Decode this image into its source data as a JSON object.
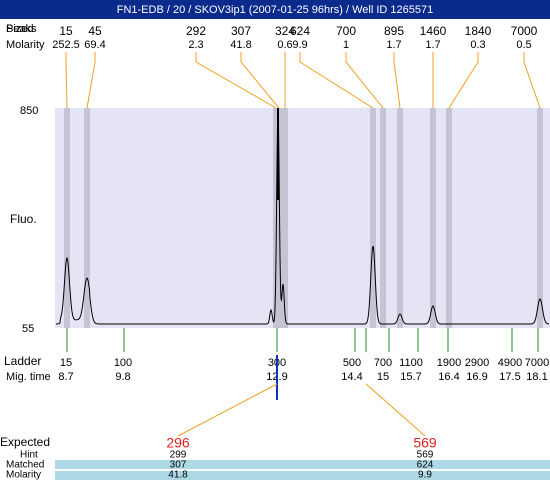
{
  "title": "FN1-EDB / 20 / SKOV3ip1 (2007-01-25 96hrs) / Well ID 1265571",
  "peak_table": {
    "peaks_label": "Peaks",
    "sized_label": "Sized",
    "molarity_label": "Molarity",
    "sizes": [
      15,
      45,
      292,
      307,
      324,
      624,
      700,
      895,
      1460,
      1840,
      7000
    ],
    "molarity": [
      252.5,
      69.4,
      2.3,
      41.8,
      0.6,
      9.9,
      1,
      1.7,
      1.7,
      0.3,
      0.5
    ]
  },
  "axis": {
    "y_label": "Fluo.",
    "y_top": 850,
    "y_bottom": 55
  },
  "ladder": {
    "label": "Ladder",
    "mig_label": "Mig. time",
    "sizes": [
      15,
      100,
      300,
      500,
      700,
      1100,
      1900,
      2900,
      4900,
      7000
    ],
    "mig_times": [
      8.7,
      9.8,
      12.9,
      14.4,
      15,
      15.7,
      16.4,
      16.9,
      17.5,
      18.1
    ]
  },
  "expected": {
    "label": "Expected",
    "hint_label": "Hint",
    "matched_label": "Matched",
    "molarity_label": "Molarity",
    "values": [
      296,
      569
    ],
    "hint": [
      299,
      569
    ],
    "matched": [
      307,
      624
    ],
    "molarity": [
      41.8,
      9.9
    ]
  }
}
